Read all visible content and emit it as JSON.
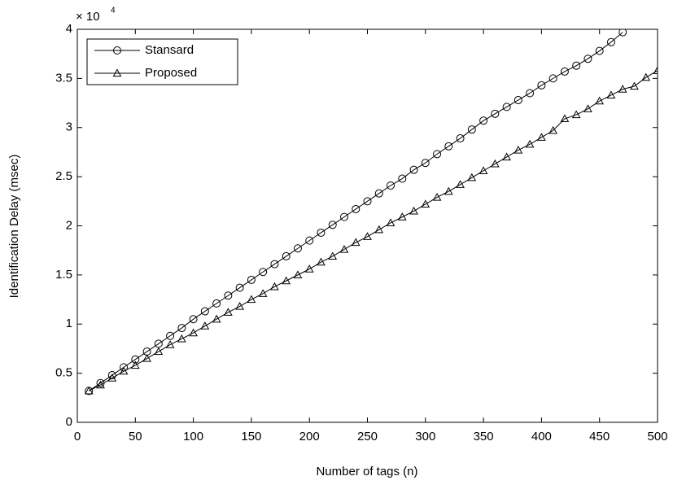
{
  "chart_data": {
    "type": "line",
    "xlabel": "Number of tags (n)",
    "ylabel": "Identification Delay (msec)",
    "y_scale_base": "× 10",
    "y_scale_exponent": "4",
    "x": [
      10,
      20,
      30,
      40,
      50,
      60,
      70,
      80,
      90,
      100,
      110,
      120,
      130,
      140,
      150,
      160,
      170,
      180,
      190,
      200,
      210,
      220,
      230,
      240,
      250,
      260,
      270,
      280,
      290,
      300,
      310,
      320,
      330,
      340,
      350,
      360,
      370,
      380,
      390,
      400,
      410,
      420,
      430,
      440,
      450,
      460,
      470,
      480,
      490,
      500
    ],
    "series": [
      {
        "name": "Stansard",
        "color": "#000000",
        "marker": "circle",
        "values": [
          0.32,
          0.4,
          0.48,
          0.56,
          0.64,
          0.72,
          0.8,
          0.88,
          0.96,
          1.05,
          1.13,
          1.21,
          1.29,
          1.37,
          1.45,
          1.53,
          1.61,
          1.69,
          1.77,
          1.85,
          1.93,
          2.01,
          2.09,
          2.17,
          2.25,
          2.33,
          2.41,
          2.48,
          2.57,
          2.64,
          2.73,
          2.81,
          2.89,
          2.98,
          3.07,
          3.14,
          3.21,
          3.28,
          3.35,
          3.43,
          3.5,
          3.57,
          3.63,
          3.7,
          3.78,
          3.87,
          3.97,
          null,
          null,
          null
        ]
      },
      {
        "name": "Proposed",
        "color": "#000000",
        "marker": "triangle",
        "values": [
          0.32,
          0.38,
          0.45,
          0.52,
          0.58,
          0.65,
          0.72,
          0.79,
          0.85,
          0.91,
          0.98,
          1.05,
          1.12,
          1.18,
          1.25,
          1.31,
          1.38,
          1.44,
          1.5,
          1.56,
          1.63,
          1.69,
          1.76,
          1.83,
          1.89,
          1.96,
          2.03,
          2.09,
          2.15,
          2.22,
          2.29,
          2.35,
          2.42,
          2.49,
          2.56,
          2.63,
          2.7,
          2.77,
          2.83,
          2.9,
          2.97,
          3.09,
          3.13,
          3.19,
          3.27,
          3.33,
          3.39,
          3.42,
          3.51,
          3.58
        ]
      }
    ],
    "xlim": [
      0,
      500
    ],
    "xticks": [
      0,
      50,
      100,
      150,
      200,
      250,
      300,
      350,
      400,
      450,
      500
    ],
    "ylim": [
      0,
      4
    ],
    "yticks": [
      0,
      0.5,
      1,
      1.5,
      2,
      2.5,
      3,
      3.5,
      4
    ],
    "legend": "upper left",
    "grid": false
  }
}
